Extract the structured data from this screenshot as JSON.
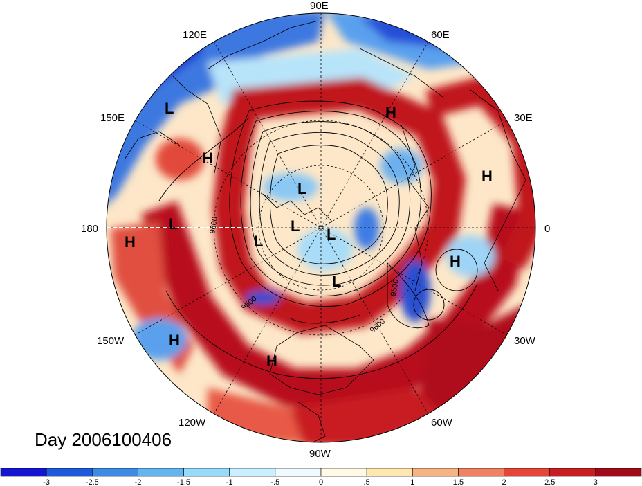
{
  "title": "Day 2006100406",
  "lon_labels": [
    {
      "id": "90e",
      "text": "90E"
    },
    {
      "id": "60e",
      "text": "60E"
    },
    {
      "id": "30e",
      "text": "30E"
    },
    {
      "id": "0",
      "text": "0"
    },
    {
      "id": "30w",
      "text": "30W"
    },
    {
      "id": "60w",
      "text": "60W"
    },
    {
      "id": "90w",
      "text": "90W"
    },
    {
      "id": "120w",
      "text": "120W"
    },
    {
      "id": "150w",
      "text": "150W"
    },
    {
      "id": "180",
      "text": "180"
    },
    {
      "id": "150e",
      "text": "150E"
    },
    {
      "id": "120e",
      "text": "120E"
    }
  ],
  "contour_labels": [
    "9600",
    "9500",
    "9600",
    "9500"
  ],
  "pressure_centers": [
    {
      "type": "H"
    },
    {
      "type": "H"
    },
    {
      "type": "H"
    },
    {
      "type": "H"
    },
    {
      "type": "H"
    },
    {
      "type": "H"
    },
    {
      "type": "H"
    },
    {
      "type": "L"
    },
    {
      "type": "L"
    },
    {
      "type": "L"
    },
    {
      "type": "L"
    },
    {
      "type": "L"
    },
    {
      "type": "L"
    },
    {
      "type": "L"
    }
  ],
  "colorbar": {
    "colors": [
      "#1414d2",
      "#1e5adc",
      "#3c8ce6",
      "#64b4f0",
      "#96dcfa",
      "#c8f0ff",
      "#eefaff",
      "#fffae6",
      "#ffe8b0",
      "#f5b482",
      "#f08262",
      "#e64637",
      "#c81e23",
      "#a00a19"
    ],
    "ticks": [
      "-3",
      "-2.5",
      "-2",
      "-1.5",
      "-1",
      "-.5",
      "0",
      ".5",
      "1",
      "1.5",
      "2",
      "2.5",
      "3"
    ]
  }
}
